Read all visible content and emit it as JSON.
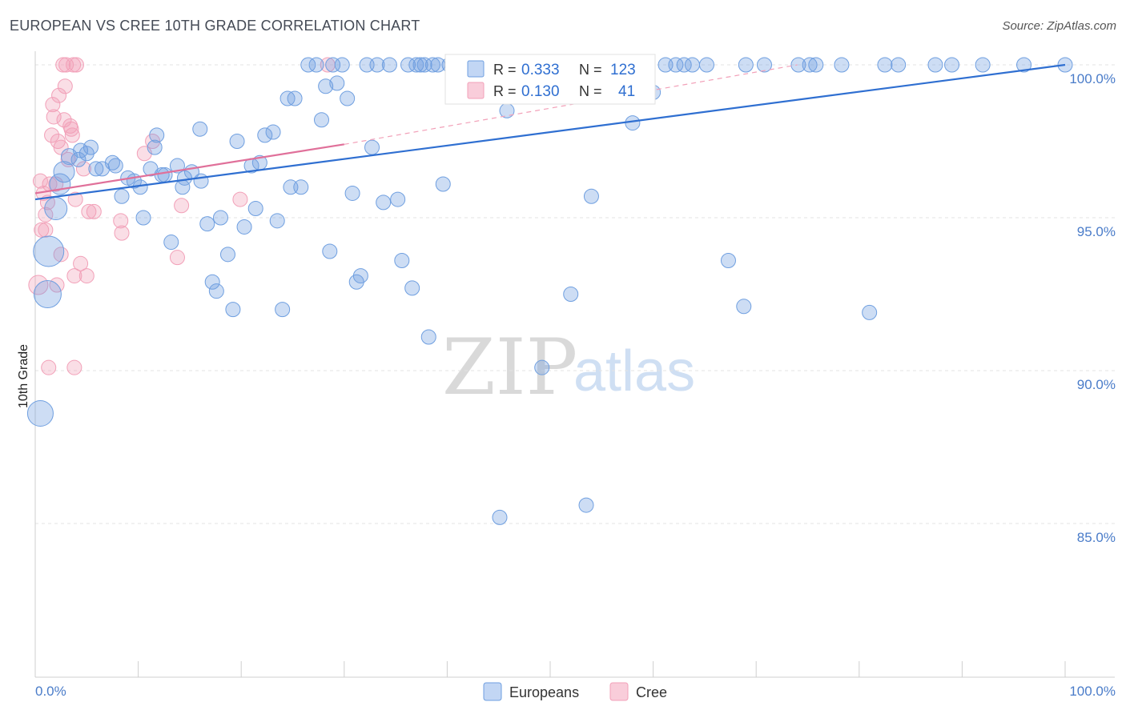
{
  "header": {
    "title": "EUROPEAN VS CREE 10TH GRADE CORRELATION CHART",
    "source": "Source: ZipAtlas.com"
  },
  "colors": {
    "europeans": "#6f9fe0",
    "europeans_line": "#2f6fd1",
    "cree": "#f2a0b8",
    "cree_line": "#e0709a",
    "tick_text": "#4a7cc9"
  },
  "legend_top": {
    "rows": [
      {
        "r_label": "R = ",
        "r_value": "0.333",
        "n_label": "N = ",
        "n_value": "123"
      },
      {
        "r_label": "R = ",
        "r_value": "0.130",
        "n_label": "N = ",
        "n_value": "41"
      }
    ]
  },
  "legend_bottom": {
    "items": [
      {
        "label": "Europeans"
      },
      {
        "label": "Cree"
      }
    ]
  },
  "watermark": {
    "zip": "ZIP",
    "atlas": "atlas"
  },
  "chart_data": {
    "type": "scatter",
    "title": "EUROPEAN VS CREE 10TH GRADE CORRELATION CHART",
    "xlabel": "",
    "ylabel": "10th Grade",
    "xlim": [
      0,
      100
    ],
    "ylim": [
      80.5,
      100.5
    ],
    "x_tick_labels": [
      "0.0%",
      "100.0%"
    ],
    "y_ticks": [
      85,
      90,
      95,
      100
    ],
    "y_tick_labels": [
      "85.0%",
      "90.0%",
      "95.0%",
      "100.0%"
    ],
    "grid": true,
    "legend_position": "top-center",
    "series": [
      {
        "name": "Europeans",
        "R": 0.333,
        "N": 123,
        "trend": {
          "x": [
            0,
            100
          ],
          "y": [
            95.6,
            100.0
          ]
        },
        "points": [
          [
            0.5,
            88.6,
            16
          ],
          [
            1.2,
            92.5,
            17
          ],
          [
            1.3,
            93.9,
            19
          ],
          [
            2.0,
            95.3,
            14
          ],
          [
            2.4,
            96.1,
            13
          ],
          [
            2.8,
            96.5,
            13
          ],
          [
            3.3,
            97.0,
            10
          ],
          [
            4.2,
            96.9,
            9
          ],
          [
            4.4,
            97.2,
            9
          ],
          [
            5.0,
            97.1,
            9
          ],
          [
            5.4,
            97.3,
            9
          ],
          [
            5.9,
            96.6,
            9
          ],
          [
            6.5,
            96.6,
            9
          ],
          [
            7.5,
            96.8,
            9
          ],
          [
            7.8,
            96.7,
            9
          ],
          [
            8.4,
            95.7,
            9
          ],
          [
            9.0,
            96.3,
            9
          ],
          [
            9.6,
            96.2,
            9
          ],
          [
            10.2,
            96.0,
            9
          ],
          [
            10.5,
            95.0,
            9
          ],
          [
            11.2,
            96.6,
            9
          ],
          [
            11.8,
            97.7,
            9
          ],
          [
            11.6,
            97.3,
            9
          ],
          [
            12.3,
            96.4,
            9
          ],
          [
            12.6,
            96.4,
            9
          ],
          [
            13.2,
            94.2,
            9
          ],
          [
            13.8,
            96.7,
            9
          ],
          [
            14.3,
            96.0,
            9
          ],
          [
            14.5,
            96.3,
            9
          ],
          [
            15.2,
            96.5,
            9
          ],
          [
            16.1,
            96.2,
            9
          ],
          [
            16.0,
            97.9,
            9
          ],
          [
            16.7,
            94.8,
            9
          ],
          [
            17.2,
            92.9,
            9
          ],
          [
            17.6,
            92.6,
            9
          ],
          [
            18.0,
            95.0,
            9
          ],
          [
            18.7,
            93.8,
            9
          ],
          [
            19.2,
            92.0,
            9
          ],
          [
            19.6,
            97.5,
            9
          ],
          [
            20.3,
            94.7,
            9
          ],
          [
            21.0,
            96.7,
            9
          ],
          [
            21.4,
            95.3,
            9
          ],
          [
            21.8,
            96.8,
            9
          ],
          [
            22.3,
            97.7,
            9
          ],
          [
            23.1,
            97.8,
            9
          ],
          [
            23.5,
            94.9,
            9
          ],
          [
            24.0,
            92.0,
            9
          ],
          [
            24.5,
            98.9,
            9
          ],
          [
            24.8,
            96.0,
            9
          ],
          [
            25.2,
            98.9,
            9
          ],
          [
            25.8,
            96.0,
            9
          ],
          [
            26.5,
            100.0,
            9
          ],
          [
            27.3,
            100.0,
            9
          ],
          [
            27.8,
            98.2,
            9
          ],
          [
            28.2,
            99.3,
            9
          ],
          [
            28.6,
            93.9,
            9
          ],
          [
            28.9,
            100.0,
            9
          ],
          [
            29.3,
            99.4,
            9
          ],
          [
            29.8,
            100.0,
            9
          ],
          [
            30.3,
            98.9,
            9
          ],
          [
            30.8,
            95.8,
            9
          ],
          [
            31.2,
            92.9,
            9
          ],
          [
            31.6,
            93.1,
            9
          ],
          [
            32.2,
            100.0,
            9
          ],
          [
            32.7,
            97.3,
            9
          ],
          [
            33.2,
            100.0,
            9
          ],
          [
            33.8,
            95.5,
            9
          ],
          [
            34.4,
            100.0,
            9
          ],
          [
            35.2,
            95.6,
            9
          ],
          [
            35.6,
            93.6,
            9
          ],
          [
            36.2,
            100.0,
            9
          ],
          [
            36.6,
            92.7,
            9
          ],
          [
            37.0,
            100.0,
            9
          ],
          [
            37.4,
            100.0,
            9
          ],
          [
            37.8,
            100.0,
            9
          ],
          [
            38.2,
            91.1,
            9
          ],
          [
            38.6,
            100.0,
            9
          ],
          [
            39.1,
            100.0,
            9
          ],
          [
            39.6,
            96.1,
            9
          ],
          [
            40.2,
            100.0,
            9
          ],
          [
            40.8,
            100.0,
            9
          ],
          [
            41.6,
            100.0,
            9
          ],
          [
            42.3,
            100.0,
            9
          ],
          [
            43.3,
            100.0,
            9
          ],
          [
            44.5,
            100.0,
            9
          ],
          [
            45.1,
            85.2,
            9
          ],
          [
            45.8,
            98.5,
            9
          ],
          [
            47.6,
            100.0,
            9
          ],
          [
            48.6,
            100.0,
            9
          ],
          [
            49.2,
            90.1,
            9
          ],
          [
            50.8,
            100.0,
            9
          ],
          [
            52.0,
            92.5,
            9
          ],
          [
            52.8,
            100.0,
            9
          ],
          [
            53.5,
            85.6,
            9
          ],
          [
            54.0,
            95.7,
            9
          ],
          [
            55.0,
            100.0,
            9
          ],
          [
            56.8,
            100.0,
            9
          ],
          [
            58.0,
            98.1,
            9
          ],
          [
            60.0,
            99.1,
            9
          ],
          [
            61.2,
            100.0,
            9
          ],
          [
            62.2,
            100.0,
            9
          ],
          [
            63.0,
            100.0,
            9
          ],
          [
            63.8,
            100.0,
            9
          ],
          [
            65.2,
            100.0,
            9
          ],
          [
            67.3,
            93.6,
            9
          ],
          [
            68.8,
            92.1,
            9
          ],
          [
            69.0,
            100.0,
            9
          ],
          [
            70.8,
            100.0,
            9
          ],
          [
            74.1,
            100.0,
            9
          ],
          [
            75.2,
            100.0,
            9
          ],
          [
            75.8,
            100.0,
            9
          ],
          [
            78.3,
            100.0,
            9
          ],
          [
            81.0,
            91.9,
            9
          ],
          [
            82.5,
            100.0,
            9
          ],
          [
            83.8,
            100.0,
            9
          ],
          [
            87.4,
            100.0,
            9
          ],
          [
            89.0,
            100.0,
            9
          ],
          [
            92.0,
            100.0,
            9
          ],
          [
            100.0,
            100.0,
            9
          ],
          [
            96.0,
            100.0,
            9
          ]
        ]
      },
      {
        "name": "Cree",
        "R": 0.13,
        "N": 41,
        "trend": {
          "x": [
            0,
            30
          ],
          "y": [
            95.8,
            97.4
          ]
        },
        "trend_extension": {
          "x": [
            30,
            74
          ],
          "y": [
            97.4,
            100.0
          ]
        },
        "points": [
          [
            0.3,
            92.8,
            12
          ],
          [
            0.5,
            96.2,
            9
          ],
          [
            0.6,
            94.6,
            9
          ],
          [
            0.8,
            95.8,
            9
          ],
          [
            1.0,
            94.6,
            9
          ],
          [
            1.0,
            95.1,
            9
          ],
          [
            1.2,
            95.5,
            9
          ],
          [
            1.3,
            90.1,
            9
          ],
          [
            1.4,
            96.1,
            9
          ],
          [
            1.6,
            97.7,
            9
          ],
          [
            1.7,
            98.7,
            9
          ],
          [
            1.8,
            98.3,
            9
          ],
          [
            2.0,
            96.1,
            9
          ],
          [
            2.1,
            92.8,
            9
          ],
          [
            2.2,
            97.5,
            9
          ],
          [
            2.3,
            99.0,
            9
          ],
          [
            2.5,
            97.3,
            9
          ],
          [
            2.5,
            93.8,
            9
          ],
          [
            2.7,
            100.0,
            9
          ],
          [
            2.8,
            98.2,
            9
          ],
          [
            2.9,
            99.3,
            9
          ],
          [
            3.0,
            100.0,
            9
          ],
          [
            3.2,
            96.9,
            9
          ],
          [
            3.4,
            98.0,
            9
          ],
          [
            3.5,
            97.9,
            9
          ],
          [
            3.6,
            97.7,
            9
          ],
          [
            3.7,
            100.0,
            9
          ],
          [
            3.8,
            93.1,
            9
          ],
          [
            3.8,
            90.1,
            9
          ],
          [
            3.9,
            95.6,
            9
          ],
          [
            4.0,
            100.0,
            9
          ],
          [
            4.4,
            93.5,
            9
          ],
          [
            4.7,
            96.6,
            9
          ],
          [
            5.0,
            93.1,
            9
          ],
          [
            5.2,
            95.2,
            9
          ],
          [
            5.7,
            95.2,
            9
          ],
          [
            8.3,
            94.9,
            9
          ],
          [
            8.4,
            94.5,
            9
          ],
          [
            10.6,
            97.1,
            9
          ],
          [
            11.4,
            97.5,
            9
          ],
          [
            13.8,
            93.7,
            9
          ],
          [
            14.2,
            95.4,
            9
          ],
          [
            19.9,
            95.6,
            9
          ],
          [
            28.4,
            100.0,
            9
          ]
        ]
      }
    ]
  }
}
